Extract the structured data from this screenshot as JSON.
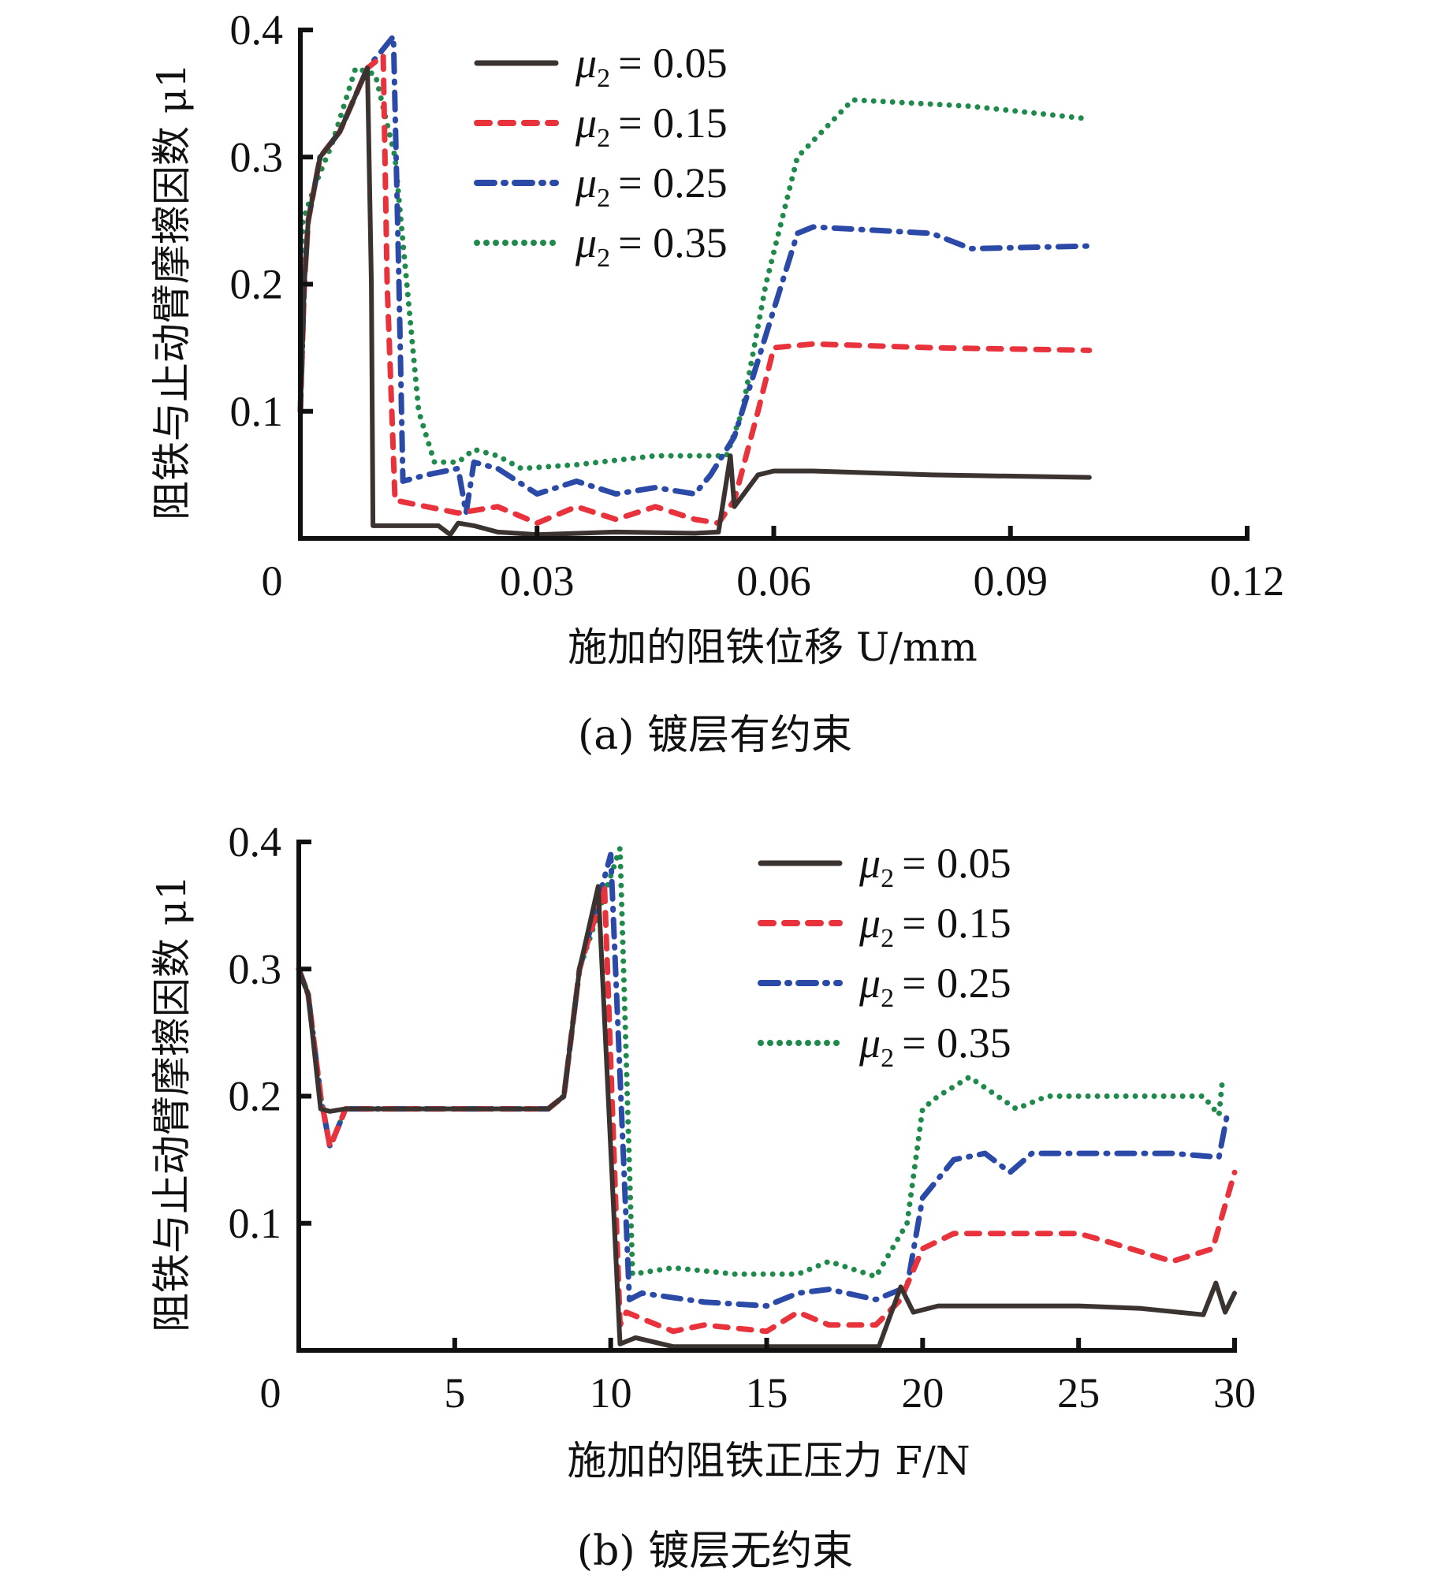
{
  "chart_data": [
    {
      "type": "line",
      "panel": "a",
      "caption": "(a) 镀层有约束",
      "title": "",
      "xlabel": "施加的阻铁位移 U/mm",
      "ylabel": "阻铁与止动臂摩擦因数 μ1",
      "xlim": [
        0,
        0.12
      ],
      "ylim": [
        0,
        0.4
      ],
      "xticks": [
        "0",
        "0.03",
        "0.06",
        "0.09",
        "0.12"
      ],
      "xtick_values": [
        0,
        0.03,
        0.06,
        0.09,
        0.12
      ],
      "yticks": [
        "0.1",
        "0.2",
        "0.3",
        "0.4"
      ],
      "ytick_values": [
        0.1,
        0.2,
        0.3,
        0.4
      ],
      "grid": false,
      "legend_position": "top-center",
      "series": [
        {
          "name": "μ2 = 0.05",
          "mu_sub": "2",
          "value_label": "= 0.05",
          "color": "#3a3330",
          "style": "solid",
          "x": [
            0,
            0.0005,
            0.001,
            0.0025,
            0.005,
            0.0085,
            0.009,
            0.0092,
            0.0175,
            0.019,
            0.02,
            0.022,
            0.025,
            0.03,
            0.04,
            0.05,
            0.053,
            0.0545,
            0.055,
            0.058,
            0.06,
            0.065,
            0.08,
            0.1
          ],
          "y": [
            0.1,
            0.2,
            0.25,
            0.3,
            0.32,
            0.37,
            0.2,
            0.01,
            0.01,
            0.003,
            0.012,
            0.01,
            0.005,
            0.003,
            0.005,
            0.004,
            0.005,
            0.065,
            0.025,
            0.05,
            0.053,
            0.053,
            0.05,
            0.048
          ]
        },
        {
          "name": "μ2 = 0.15",
          "mu_sub": "2",
          "value_label": "= 0.15",
          "color": "#e8323c",
          "style": "dashed",
          "x": [
            0,
            0.0005,
            0.001,
            0.0025,
            0.005,
            0.0085,
            0.0105,
            0.011,
            0.012,
            0.016,
            0.02,
            0.025,
            0.03,
            0.035,
            0.04,
            0.045,
            0.05,
            0.053,
            0.055,
            0.058,
            0.06,
            0.065,
            0.08,
            0.1
          ],
          "y": [
            0.1,
            0.2,
            0.25,
            0.3,
            0.32,
            0.37,
            0.38,
            0.2,
            0.03,
            0.025,
            0.02,
            0.025,
            0.012,
            0.025,
            0.015,
            0.025,
            0.015,
            0.012,
            0.03,
            0.1,
            0.15,
            0.153,
            0.15,
            0.148
          ]
        },
        {
          "name": "μ2 = 0.25",
          "mu_sub": "2",
          "value_label": "= 0.25",
          "color": "#2b4aa8",
          "style": "dashdot",
          "x": [
            0,
            0.0005,
            0.001,
            0.0025,
            0.005,
            0.0085,
            0.0105,
            0.0118,
            0.0125,
            0.013,
            0.016,
            0.02,
            0.021,
            0.022,
            0.025,
            0.03,
            0.035,
            0.04,
            0.045,
            0.05,
            0.052,
            0.055,
            0.058,
            0.063,
            0.065,
            0.08,
            0.085,
            0.1
          ],
          "y": [
            0.1,
            0.2,
            0.25,
            0.3,
            0.32,
            0.37,
            0.385,
            0.395,
            0.2,
            0.045,
            0.05,
            0.055,
            0.02,
            0.06,
            0.055,
            0.035,
            0.045,
            0.035,
            0.04,
            0.035,
            0.05,
            0.08,
            0.14,
            0.24,
            0.245,
            0.24,
            0.228,
            0.23
          ]
        },
        {
          "name": "μ2 = 0.35",
          "mu_sub": "2",
          "value_label": "= 0.35",
          "color": "#1f8a4c",
          "style": "dotted",
          "x": [
            0,
            0.0003,
            0.002,
            0.004,
            0.007,
            0.0095,
            0.012,
            0.0135,
            0.015,
            0.017,
            0.02,
            0.022,
            0.025,
            0.028,
            0.035,
            0.045,
            0.054,
            0.056,
            0.059,
            0.063,
            0.07,
            0.085,
            0.1
          ],
          "y": [
            0.1,
            0.25,
            0.28,
            0.31,
            0.37,
            0.365,
            0.3,
            0.2,
            0.1,
            0.06,
            0.06,
            0.07,
            0.065,
            0.055,
            0.058,
            0.065,
            0.065,
            0.1,
            0.2,
            0.3,
            0.345,
            0.34,
            0.33
          ]
        }
      ]
    },
    {
      "type": "line",
      "panel": "b",
      "caption": "(b) 镀层无约束",
      "title": "",
      "xlabel": "施加的阻铁正压力 F/N",
      "ylabel": "阻铁与止动臂摩擦因数 μ1",
      "xlim": [
        0,
        30
      ],
      "ylim": [
        0,
        0.4
      ],
      "xticks": [
        "0",
        "5",
        "10",
        "15",
        "20",
        "25",
        "30"
      ],
      "xtick_values": [
        0,
        5,
        10,
        15,
        20,
        25,
        30
      ],
      "yticks": [
        "0.1",
        "0.2",
        "0.3",
        "0.4"
      ],
      "ytick_values": [
        0.1,
        0.2,
        0.3,
        0.4
      ],
      "grid": false,
      "legend_position": "top-right",
      "series": [
        {
          "name": "μ2 = 0.05",
          "mu_sub": "2",
          "value_label": "= 0.05",
          "color": "#3a3330",
          "style": "solid",
          "x": [
            0,
            0.3,
            0.7,
            1.0,
            1.5,
            8.0,
            8.5,
            9.0,
            9.6,
            10.3,
            10.8,
            12,
            15,
            18.6,
            19.3,
            19.7,
            20.5,
            22,
            25,
            27,
            29,
            29.4,
            29.7,
            30
          ],
          "y": [
            0.3,
            0.28,
            0.19,
            0.188,
            0.19,
            0.19,
            0.2,
            0.3,
            0.365,
            0.005,
            0.01,
            0.003,
            0.003,
            0.003,
            0.05,
            0.03,
            0.035,
            0.035,
            0.035,
            0.033,
            0.028,
            0.053,
            0.03,
            0.045
          ]
        },
        {
          "name": "μ2 = 0.15",
          "mu_sub": "2",
          "value_label": "= 0.15",
          "color": "#e8323c",
          "style": "dashed",
          "x": [
            0,
            0.3,
            0.7,
            1.0,
            1.5,
            8.0,
            8.5,
            9.0,
            9.8,
            10.3,
            10.5,
            12,
            13,
            15,
            16,
            17,
            18.5,
            19.3,
            20,
            21,
            25,
            26,
            28,
            29.3,
            30
          ],
          "y": [
            0.3,
            0.28,
            0.2,
            0.16,
            0.19,
            0.19,
            0.2,
            0.3,
            0.365,
            0.02,
            0.03,
            0.015,
            0.02,
            0.015,
            0.03,
            0.02,
            0.02,
            0.04,
            0.08,
            0.092,
            0.092,
            0.085,
            0.07,
            0.08,
            0.14
          ]
        },
        {
          "name": "μ2 = 0.25",
          "mu_sub": "2",
          "value_label": "= 0.25",
          "color": "#2b4aa8",
          "style": "dashdot",
          "x": [
            0,
            0.3,
            0.7,
            1.0,
            1.5,
            8.0,
            8.5,
            9.0,
            10.0,
            10.6,
            11,
            13,
            15,
            16,
            17,
            18.5,
            19.5,
            20,
            21,
            22,
            22.8,
            23.5,
            28,
            29.5,
            29.8
          ],
          "y": [
            0.3,
            0.28,
            0.2,
            0.16,
            0.19,
            0.19,
            0.2,
            0.3,
            0.39,
            0.04,
            0.045,
            0.038,
            0.035,
            0.045,
            0.048,
            0.04,
            0.05,
            0.12,
            0.15,
            0.155,
            0.14,
            0.155,
            0.155,
            0.152,
            0.19
          ]
        },
        {
          "name": "μ2 = 0.35",
          "mu_sub": "2",
          "value_label": "= 0.35",
          "color": "#1f8a4c",
          "style": "dotted",
          "x": [
            0,
            0.3,
            0.7,
            1.0,
            1.5,
            8.0,
            8.5,
            9.0,
            10.3,
            10.7,
            12,
            14,
            16,
            17,
            18.5,
            19.5,
            20,
            20.5,
            21.5,
            23,
            24,
            29,
            29.5,
            29.6
          ],
          "y": [
            0.3,
            0.28,
            0.2,
            0.16,
            0.19,
            0.19,
            0.2,
            0.3,
            0.395,
            0.06,
            0.065,
            0.06,
            0.06,
            0.07,
            0.058,
            0.1,
            0.19,
            0.2,
            0.215,
            0.19,
            0.2,
            0.2,
            0.185,
            0.21
          ]
        }
      ]
    }
  ]
}
